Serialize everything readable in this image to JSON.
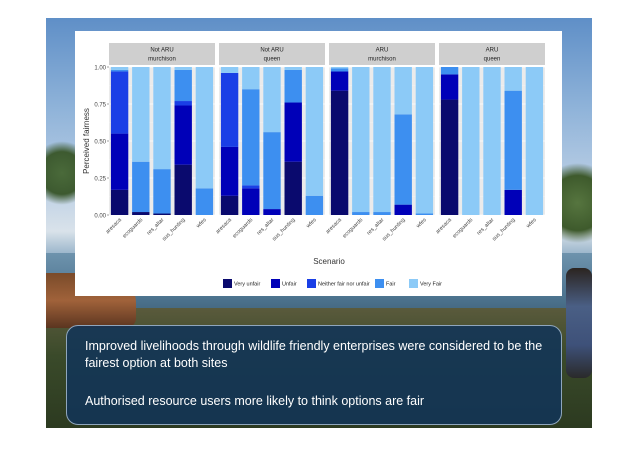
{
  "slide": {
    "point_1": "Improved livelihoods through wildlife friendly enterprises were considered to be the fairest option at both sites",
    "point_2": "Authorised resource users more likely to think options are fair"
  },
  "chart_data": {
    "type": "bar",
    "stacked": true,
    "xlabel": "Scenario",
    "ylabel": "Perceived fairness",
    "ylim": [
      0,
      1
    ],
    "y_ticks": [
      "0.00",
      "0.25",
      "0.50",
      "0.75",
      "1.00"
    ],
    "grid": true,
    "legend_position": "bottom",
    "categories": [
      "aresaca",
      "ecoguards",
      "res_altar",
      "sus_hunting",
      "wfes"
    ],
    "levels": [
      {
        "name": "Very unfair",
        "color": "#0a0a6e"
      },
      {
        "name": "Unfair",
        "color": "#0000b8"
      },
      {
        "name": "Neither fair nor unfair",
        "color": "#1a3fe6"
      },
      {
        "name": "Fair",
        "color": "#3d8ff0"
      },
      {
        "name": "Very Fair",
        "color": "#8ccaf7"
      }
    ],
    "panels": [
      {
        "strip_top": "Not ARU",
        "strip_bottom": "murchison",
        "values": [
          [
            0.17,
            0.38,
            0.42,
            0.01,
            0.02
          ],
          [
            0.02,
            0.0,
            0.0,
            0.34,
            0.64
          ],
          [
            0.01,
            0.0,
            0.0,
            0.3,
            0.69
          ],
          [
            0.34,
            0.4,
            0.03,
            0.21,
            0.02
          ],
          [
            0.0,
            0.0,
            0.0,
            0.18,
            0.82
          ]
        ]
      },
      {
        "strip_top": "Not ARU",
        "strip_bottom": "queen",
        "values": [
          [
            0.13,
            0.33,
            0.5,
            0.0,
            0.04
          ],
          [
            0.0,
            0.18,
            0.02,
            0.65,
            0.15
          ],
          [
            0.0,
            0.04,
            0.0,
            0.52,
            0.44
          ],
          [
            0.36,
            0.4,
            0.0,
            0.22,
            0.02
          ],
          [
            0.0,
            0.0,
            0.0,
            0.13,
            0.87
          ]
        ]
      },
      {
        "strip_top": "ARU",
        "strip_bottom": "murchison",
        "values": [
          [
            0.84,
            0.13,
            0.0,
            0.02,
            0.01
          ],
          [
            0.0,
            0.0,
            0.0,
            0.02,
            0.98
          ],
          [
            0.0,
            0.0,
            0.0,
            0.02,
            0.98
          ],
          [
            0.0,
            0.07,
            0.0,
            0.61,
            0.32
          ],
          [
            0.0,
            0.0,
            0.0,
            0.01,
            0.99
          ]
        ]
      },
      {
        "strip_top": "ARU",
        "strip_bottom": "queen",
        "values": [
          [
            0.78,
            0.17,
            0.0,
            0.05,
            0.0
          ],
          [
            0.0,
            0.0,
            0.0,
            0.0,
            1.0
          ],
          [
            0.0,
            0.0,
            0.0,
            0.0,
            1.0
          ],
          [
            0.0,
            0.17,
            0.0,
            0.67,
            0.16
          ],
          [
            0.0,
            0.0,
            0.0,
            0.0,
            1.0
          ]
        ]
      }
    ]
  }
}
